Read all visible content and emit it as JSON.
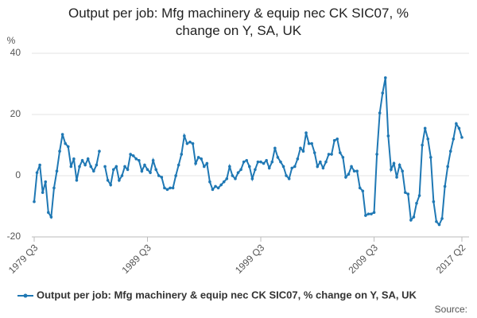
{
  "chart_data": {
    "type": "line",
    "title": "Output per job: Mfg machinery & equip nec CK SIC07, % change on Y, SA, UK",
    "y_label": "%",
    "source": "Source:",
    "categories": [
      "1979 Q3",
      null,
      null,
      null,
      null,
      null,
      null,
      null,
      null,
      null,
      null,
      null,
      null,
      null,
      null,
      null,
      null,
      null,
      null,
      null,
      null,
      null,
      null,
      null,
      null,
      null,
      null,
      null,
      null,
      null,
      null,
      null,
      null,
      null,
      null,
      null,
      null,
      null,
      null,
      null,
      "1989 Q3",
      null,
      null,
      null,
      null,
      null,
      null,
      null,
      null,
      null,
      null,
      null,
      null,
      null,
      null,
      null,
      null,
      null,
      null,
      null,
      null,
      null,
      null,
      null,
      null,
      null,
      null,
      null,
      null,
      null,
      null,
      null,
      null,
      null,
      null,
      null,
      null,
      null,
      null,
      null,
      "1999 Q3",
      null,
      null,
      null,
      null,
      null,
      null,
      null,
      null,
      null,
      null,
      null,
      null,
      null,
      null,
      null,
      null,
      null,
      null,
      null,
      null,
      null,
      null,
      null,
      null,
      null,
      null,
      null,
      null,
      null,
      null,
      null,
      null,
      null,
      null,
      null,
      null,
      null,
      null,
      null,
      "2009 Q3",
      null,
      null,
      null,
      null,
      null,
      null,
      null,
      null,
      null,
      null,
      null,
      null,
      null,
      null,
      null,
      null,
      null,
      null,
      null,
      null,
      null,
      null,
      null,
      null,
      null,
      null,
      null,
      null,
      null,
      null,
      "2017 Q2"
    ],
    "series": [
      {
        "name": "Output per job: Mfg machinery & equip nec CK SIC07, % change on Y, SA, UK",
        "color": "#1f78b4",
        "values": [
          -8.5,
          1,
          3.5,
          -5.5,
          -2,
          -12,
          -13.5,
          -4,
          1.5,
          8,
          13.5,
          10.5,
          9.5,
          3,
          5.5,
          -1.5,
          3,
          5,
          3.5,
          5.5,
          3,
          1.5,
          3.5,
          8,
          null,
          3,
          -1.5,
          -3,
          2,
          3,
          -1.5,
          0,
          3,
          2,
          7,
          6.5,
          5.5,
          5,
          1.5,
          3.5,
          2,
          1,
          5,
          2,
          0,
          -0.5,
          -4,
          -4.5,
          -4,
          -4,
          0,
          3.5,
          7,
          13,
          10.5,
          11,
          10.5,
          4,
          6,
          5.5,
          3,
          4,
          -2,
          -4.5,
          -3.5,
          -4,
          -3,
          -2,
          -1,
          3,
          0,
          -1,
          1,
          2,
          4.5,
          5,
          3,
          -1,
          2,
          4.5,
          4.5,
          4,
          5,
          2.5,
          4.5,
          9,
          6,
          4.5,
          3,
          0,
          -1,
          2.5,
          3,
          5.5,
          9,
          8,
          14,
          10.5,
          10.5,
          7.5,
          3,
          4.5,
          2.5,
          4.5,
          7,
          7,
          11.5,
          12,
          7.5,
          6,
          -0.5,
          0.5,
          3,
          1.5,
          1.5,
          -4,
          -5,
          -13,
          -12.5,
          -12.5,
          -12,
          7,
          20.5,
          27,
          32,
          13,
          2,
          4,
          -0.5,
          3.5,
          1.5,
          -5.5,
          -6,
          -14.5,
          -13.5,
          -9,
          -6.5,
          10,
          15.5,
          12,
          6,
          -8.5,
          -15,
          -16,
          -14,
          -3.5,
          3,
          8,
          12,
          17,
          15.5,
          12.5
        ]
      }
    ],
    "ylim": [
      -20,
      40
    ],
    "yticks": [
      -20,
      0,
      20,
      40
    ],
    "grid": true
  }
}
